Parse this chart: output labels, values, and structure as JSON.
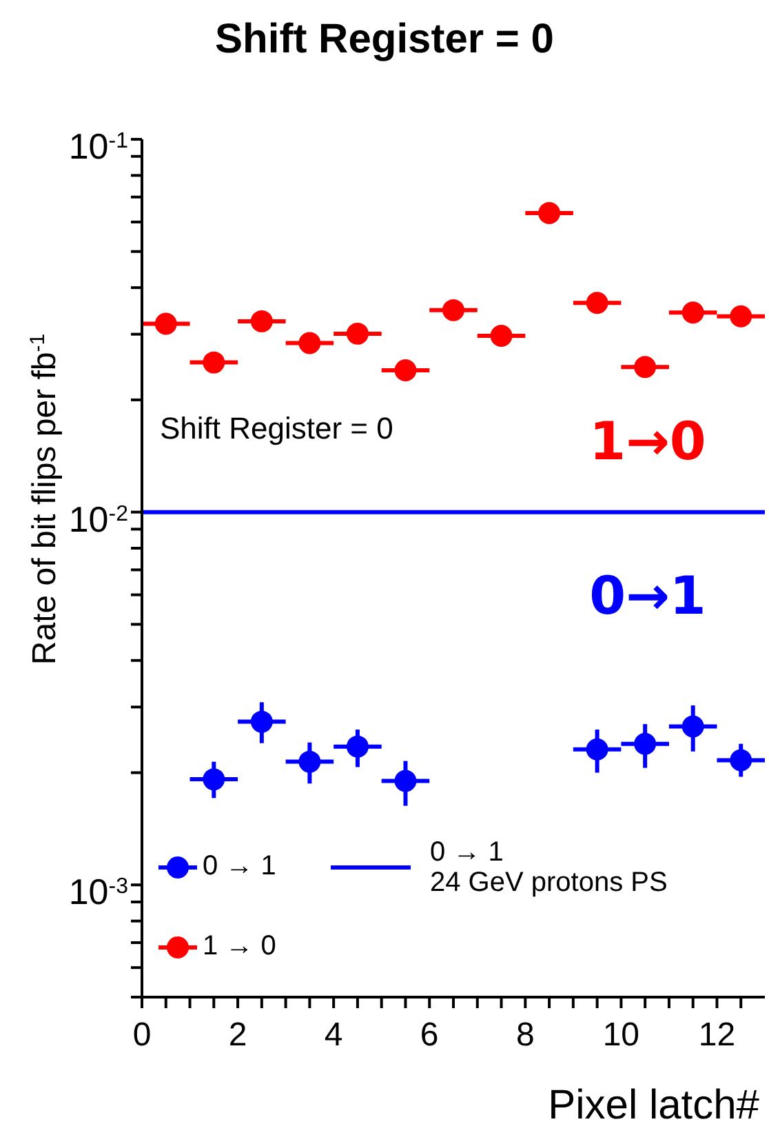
{
  "chart_data": {
    "type": "scatter",
    "title": "Shift Register = 0",
    "xlabel": "Pixel latch#",
    "ylabel": "Rate of bit flips per fb$^{-1}$",
    "x": [
      0.5,
      1.5,
      2.5,
      3.5,
      4.5,
      5.5,
      6.5,
      7.5,
      8.5,
      9.5,
      10.5,
      11.5,
      12.5
    ],
    "series": [
      {
        "name": "0 → 1",
        "color": "#0000ff",
        "values": [
          null,
          0.00192,
          0.00274,
          0.00214,
          0.00235,
          0.0019,
          null,
          null,
          null,
          0.00231,
          0.00239,
          0.00266,
          0.00216
        ],
        "errors": [
          null,
          [
            0.00171,
            0.00214
          ],
          [
            0.0024,
            0.00309
          ],
          [
            0.00187,
            0.00241
          ],
          [
            0.00207,
            0.00261
          ],
          [
            0.00163,
            0.00215
          ],
          null,
          null,
          null,
          [
            0.002,
            0.00261
          ],
          [
            0.00206,
            0.0027
          ],
          [
            0.00228,
            0.00303
          ],
          [
            0.00195,
            0.00239
          ]
        ],
        "xerrors": [
          null,
          0.5,
          0.5,
          0.5,
          0.5,
          0.5,
          null,
          null,
          null,
          0.5,
          0.5,
          0.5,
          0.5
        ]
      },
      {
        "name": "1 → 0",
        "color": "#ff0000",
        "values": [
          0.032,
          0.0252,
          0.0325,
          0.0284,
          0.0301,
          0.024,
          0.0348,
          0.0297,
          0.0634,
          0.0364,
          0.0245,
          0.0343,
          0.0335
        ],
        "xerrors": [
          0.5,
          0.5,
          0.5,
          0.5,
          0.5,
          0.5,
          0.5,
          0.5,
          0.5,
          0.5,
          0.5,
          0.5,
          0.5
        ]
      }
    ],
    "ref_lines": [
      {
        "axis": "y",
        "value": 0.01,
        "label": "0 → 1\n24 GeV protons PS",
        "color": "#0000ff"
      }
    ],
    "annotations": [
      "Shift Register = 0",
      "1→0",
      "0→1"
    ],
    "xlim": [
      0,
      13
    ],
    "xticks": [
      0,
      {
        "value": 0.5,
        "label": null
      },
      {
        "value": 1,
        "label": null
      },
      {
        "value": 1.5,
        "label": null
      },
      2,
      {
        "value": 2.5,
        "label": null
      },
      {
        "value": 3,
        "label": null
      },
      {
        "value": 3.5,
        "label": null
      },
      4,
      {
        "value": 4.5,
        "label": null
      },
      {
        "value": 5,
        "label": null
      },
      {
        "value": 5.5,
        "label": null
      },
      6,
      {
        "value": 6.5,
        "label": null
      },
      {
        "value": 7,
        "label": null
      },
      {
        "value": 7.5,
        "label": null
      },
      8,
      {
        "value": 8.5,
        "label": null
      },
      {
        "value": 9,
        "label": null
      },
      {
        "value": 9.5,
        "label": null
      },
      10,
      {
        "value": 10.5,
        "label": null
      },
      {
        "value": 11,
        "label": null
      },
      {
        "value": 11.5,
        "label": null
      },
      12,
      {
        "value": 12.5,
        "label": null
      }
    ],
    "ylim": [
      0.0005,
      0.1
    ],
    "log": "y",
    "yticks": [
      {
        "value": 0.0005,
        "label": null
      },
      {
        "value": 0.0006,
        "label": null
      },
      {
        "value": 0.0007,
        "label": null
      },
      {
        "value": 0.0008,
        "label": null
      },
      {
        "value": 0.0009,
        "label": null
      },
      {
        "value": 0.001,
        "label": "10$^{-3}$"
      },
      {
        "value": 0.002,
        "label": null
      },
      {
        "value": 0.003,
        "label": null
      },
      {
        "value": 0.004,
        "label": null
      },
      {
        "value": 0.005,
        "label": null
      },
      {
        "value": 0.006,
        "label": null
      },
      {
        "value": 0.007,
        "label": null
      },
      {
        "value": 0.008,
        "label": null
      },
      {
        "value": 0.009,
        "label": null
      },
      {
        "value": 0.01,
        "label": "10$^{-2}$"
      },
      {
        "value": 0.02,
        "label": null
      },
      {
        "value": 0.03,
        "label": null
      },
      {
        "value": 0.04,
        "label": null
      },
      {
        "value": 0.05,
        "label": null
      },
      {
        "value": 0.06,
        "label": null
      },
      {
        "value": 0.07,
        "label": null
      },
      {
        "value": 0.08,
        "label": null
      },
      {
        "value": 0.09,
        "label": null
      },
      {
        "value": 0.1,
        "label": "10$^{-1}$"
      }
    ],
    "grid": false,
    "legend": "bottom left",
    "marker": "circle"
  }
}
